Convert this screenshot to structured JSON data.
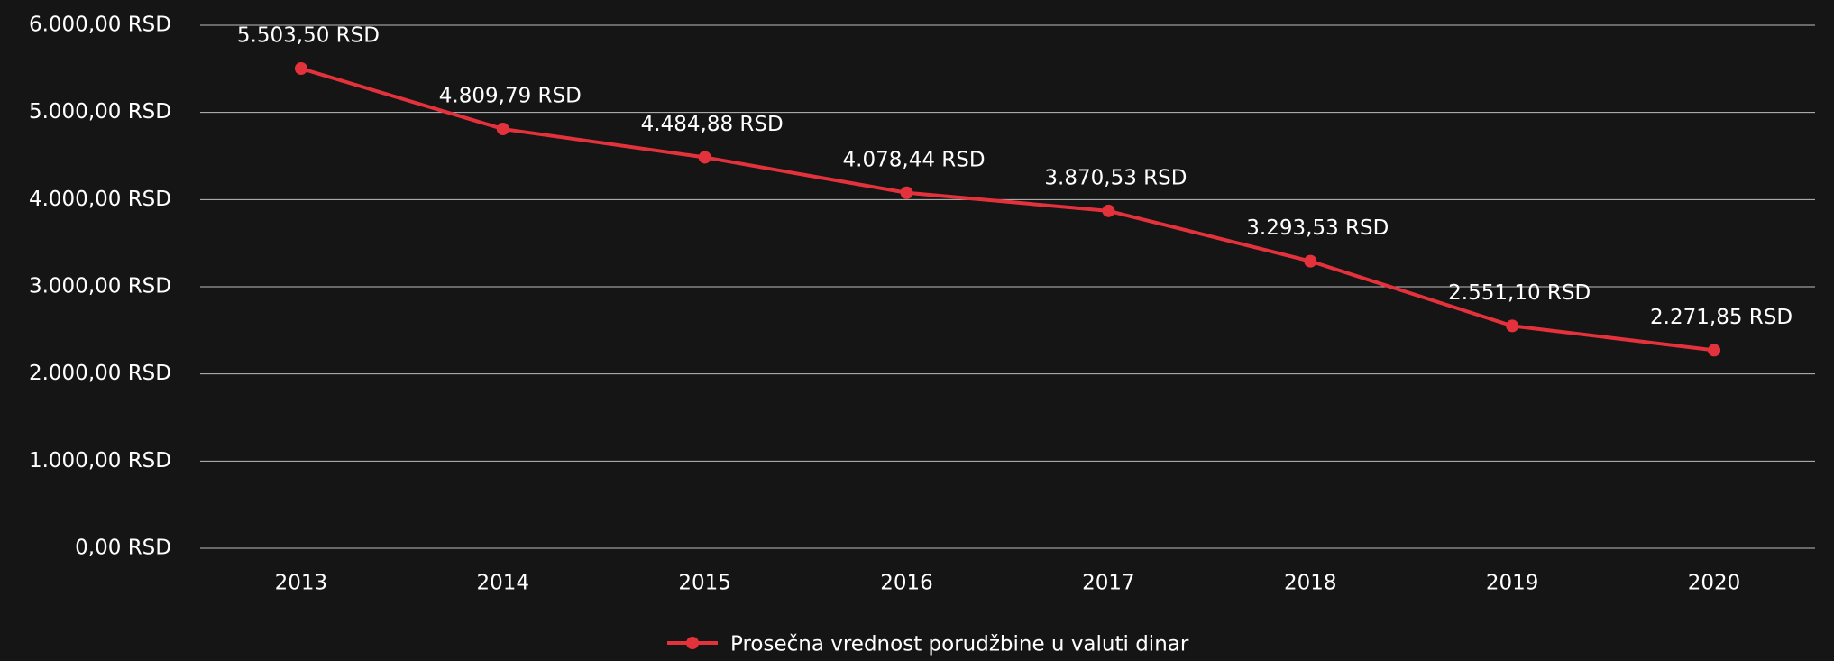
{
  "chart_data": {
    "type": "line",
    "categories": [
      "2013",
      "2014",
      "2015",
      "2016",
      "2017",
      "2018",
      "2019",
      "2020"
    ],
    "series": [
      {
        "name": "Prosečna vrednost porudžbine u valuti dinar",
        "color": "#e3323b",
        "values": [
          5503.5,
          4809.79,
          4484.88,
          4078.44,
          3870.53,
          3293.53,
          2551.1,
          2271.85
        ],
        "value_labels": [
          "5.503,50 RSD",
          "4.809,79 RSD",
          "4.484,88 RSD",
          "4.078,44 RSD",
          "3.870,53 RSD",
          "3.293,53 RSD",
          "2.551,10 RSD",
          "2.271,85 RSD"
        ]
      }
    ],
    "ylim": [
      0,
      6000
    ],
    "yticks": [
      {
        "value": 0,
        "label": "0,00 RSD"
      },
      {
        "value": 1000,
        "label": "1.000,00 RSD"
      },
      {
        "value": 2000,
        "label": "2.000,00 RSD"
      },
      {
        "value": 3000,
        "label": "3.000,00 RSD"
      },
      {
        "value": 4000,
        "label": "4.000,00 RSD"
      },
      {
        "value": 5000,
        "label": "5.000,00 RSD"
      },
      {
        "value": 6000,
        "label": "6.000,00 RSD"
      }
    ],
    "grid": true,
    "legend": "bottom"
  }
}
